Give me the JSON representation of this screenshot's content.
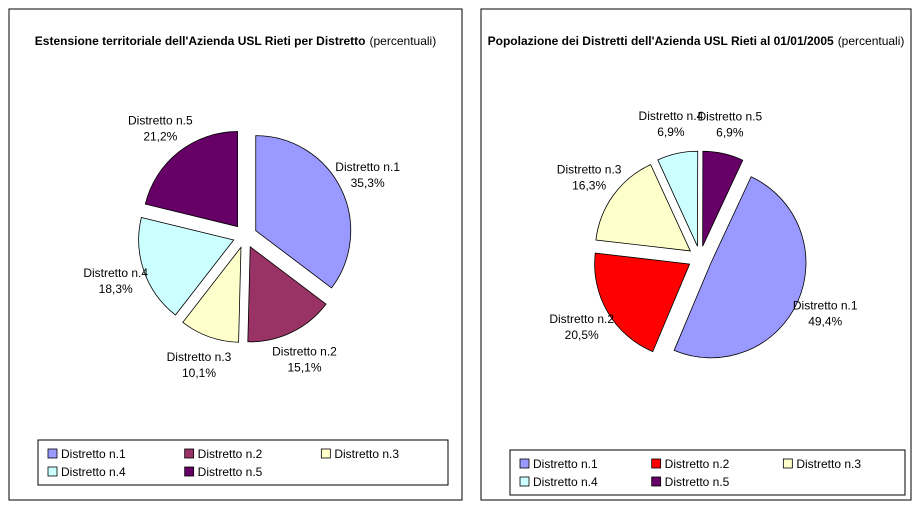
{
  "chart_data": [
    {
      "type": "pie",
      "title": "Estensione territoriale dell'Azienda USL Rieti per Distretto",
      "subtitle": "(percentuali)",
      "categories": [
        "Distretto n.1",
        "Distretto n.2",
        "Distretto n.3",
        "Distretto n.4",
        "Distretto n.5"
      ],
      "values": [
        35.3,
        15.1,
        10.1,
        18.3,
        21.2
      ],
      "value_labels": [
        "35,3%",
        "15,1%",
        "10,1%",
        "18,3%",
        "21,2%"
      ],
      "colors": [
        "#9999ff",
        "#993366",
        "#ffffcc",
        "#ccffff",
        "#660066"
      ],
      "legend": "bottom"
    },
    {
      "type": "pie",
      "title": "Popolazione dei Distretti dell'Azienda USL Rieti al 01/01/2005",
      "subtitle": "(percentuali)",
      "categories": [
        "Distretto n.1",
        "Distretto n.2",
        "Distretto n.3",
        "Distretto n.4",
        "Distretto n.5"
      ],
      "values": [
        49.4,
        20.5,
        16.3,
        6.9,
        6.9
      ],
      "value_labels": [
        "49,4%",
        "20,5%",
        "16,3%",
        "6,9%",
        "6,9%"
      ],
      "colors": [
        "#9999ff",
        "#ff0000",
        "#ffffcc",
        "#ccffff",
        "#660066"
      ],
      "legend": "bottom"
    }
  ]
}
